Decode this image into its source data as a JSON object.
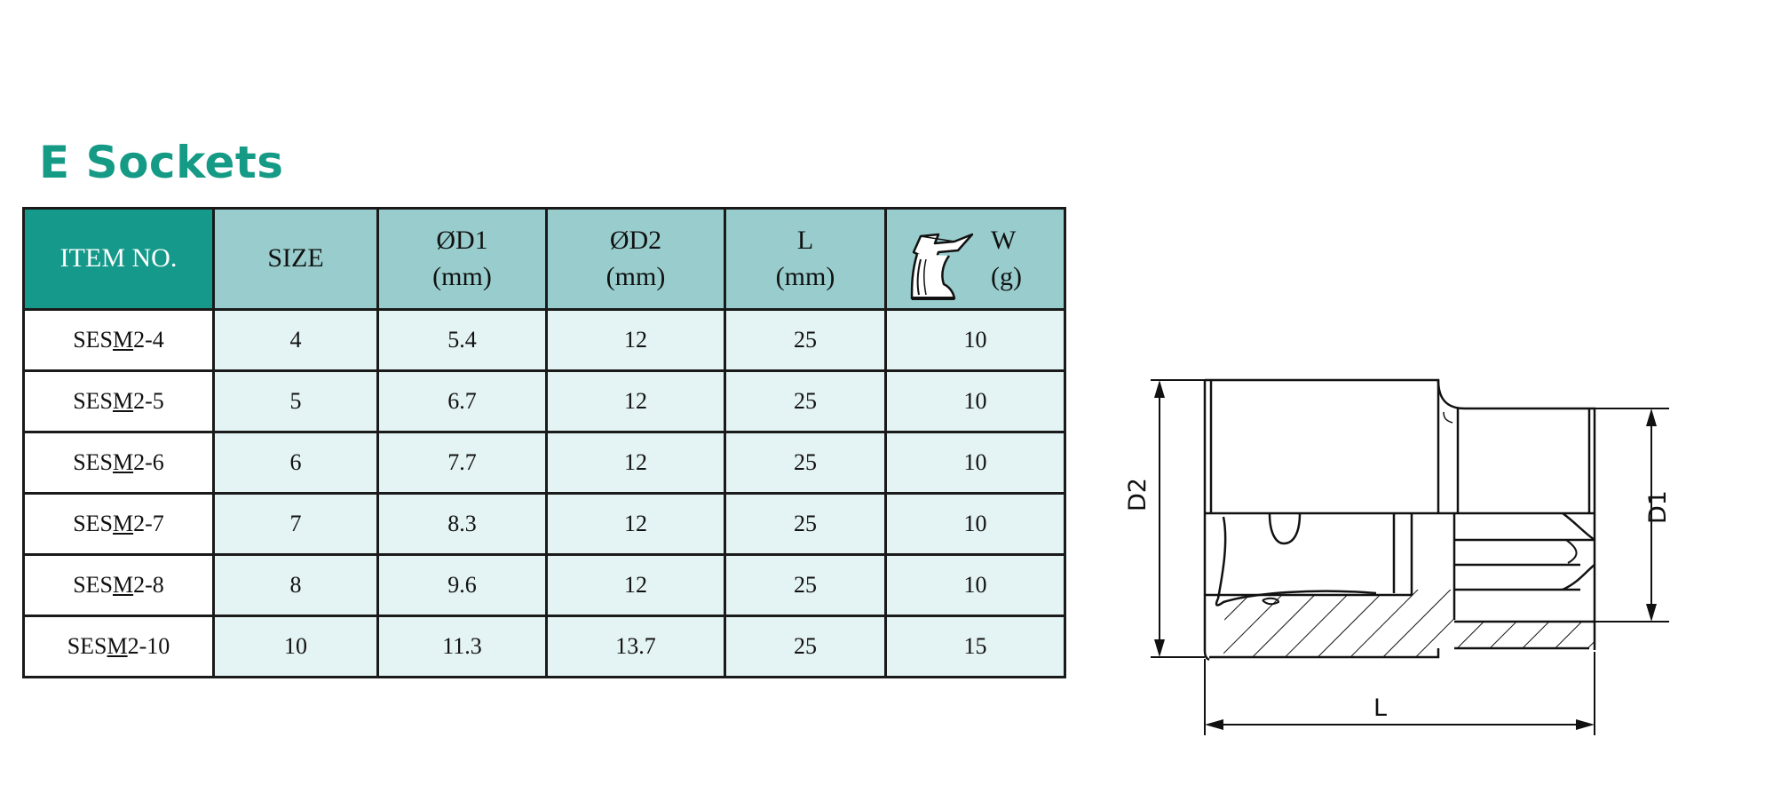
{
  "title": "E Sockets",
  "table": {
    "headers": [
      {
        "line1": "ITEM NO.",
        "line2": ""
      },
      {
        "line1": "SIZE",
        "line2": ""
      },
      {
        "line1": "ØD1",
        "line2": "(mm)"
      },
      {
        "line1": "ØD2",
        "line2": "(mm)"
      },
      {
        "line1": "L",
        "line2": "(mm)"
      },
      {
        "line1": "W",
        "line2": "(g)"
      }
    ],
    "rows": [
      {
        "item_pre": "SES",
        "item_u": "M",
        "item_post": "2-4",
        "size": "4",
        "d1": "5.4",
        "d2": "12",
        "l": "25",
        "w": "10"
      },
      {
        "item_pre": "SES",
        "item_u": "M",
        "item_post": "2-5",
        "size": "5",
        "d1": "6.7",
        "d2": "12",
        "l": "25",
        "w": "10"
      },
      {
        "item_pre": "SES",
        "item_u": "M",
        "item_post": "2-6",
        "size": "6",
        "d1": "7.7",
        "d2": "12",
        "l": "25",
        "w": "10"
      },
      {
        "item_pre": "SES",
        "item_u": "M",
        "item_post": "2-7",
        "size": "7",
        "d1": "8.3",
        "d2": "12",
        "l": "25",
        "w": "10"
      },
      {
        "item_pre": "SES",
        "item_u": "M",
        "item_post": "2-8",
        "size": "8",
        "d1": "9.6",
        "d2": "12",
        "l": "25",
        "w": "10"
      },
      {
        "item_pre": "SES",
        "item_u": "M",
        "item_post": "2-10",
        "size": "10",
        "d1": "11.3",
        "d2": "13.7",
        "l": "25",
        "w": "15"
      }
    ]
  },
  "drawing": {
    "label_d2": "D2",
    "label_d1": "D1",
    "label_l": "L"
  },
  "colors": {
    "brand_teal": "#14998a",
    "header_teal_light": "#99cdcd",
    "cell_teal_pale": "#e4f3f3"
  },
  "icons": {
    "weight": "scale-icon"
  }
}
